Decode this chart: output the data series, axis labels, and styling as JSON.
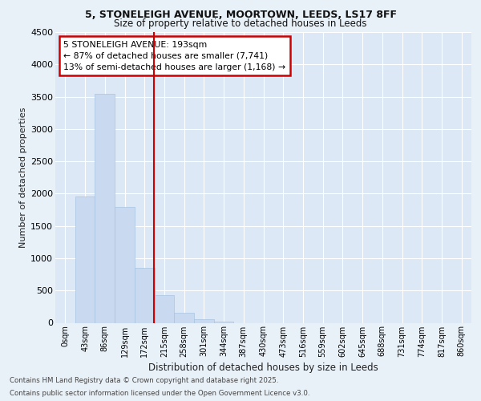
{
  "title_line1": "5, STONELEIGH AVENUE, MOORTOWN, LEEDS, LS17 8FF",
  "title_line2": "Size of property relative to detached houses in Leeds",
  "xlabel": "Distribution of detached houses by size in Leeds",
  "ylabel": "Number of detached properties",
  "categories": [
    "0sqm",
    "43sqm",
    "86sqm",
    "129sqm",
    "172sqm",
    "215sqm",
    "258sqm",
    "301sqm",
    "344sqm",
    "387sqm",
    "430sqm",
    "473sqm",
    "516sqm",
    "559sqm",
    "602sqm",
    "645sqm",
    "688sqm",
    "731sqm",
    "774sqm",
    "817sqm",
    "860sqm"
  ],
  "values": [
    0,
    1950,
    3550,
    1800,
    850,
    430,
    150,
    50,
    20,
    0,
    0,
    0,
    0,
    0,
    0,
    0,
    0,
    0,
    0,
    0,
    0
  ],
  "bar_color": "#c9daf0",
  "bar_edge_color": "#a8c4e0",
  "annotation_title": "5 STONELEIGH AVENUE: 193sqm",
  "annotation_line1": "← 87% of detached houses are smaller (7,741)",
  "annotation_line2": "13% of semi-detached houses are larger (1,168) →",
  "annotation_box_facecolor": "#ffffff",
  "annotation_box_edgecolor": "#cc0000",
  "vline_color": "#cc0000",
  "vline_x_index": 4.49,
  "ylim": [
    0,
    4500
  ],
  "yticks": [
    0,
    500,
    1000,
    1500,
    2000,
    2500,
    3000,
    3500,
    4000,
    4500
  ],
  "background_color": "#e8f0f8",
  "plot_bg_color": "#dce8f5",
  "grid_color": "#ffffff",
  "footer_line1": "Contains HM Land Registry data © Crown copyright and database right 2025.",
  "footer_line2": "Contains public sector information licensed under the Open Government Licence v3.0."
}
